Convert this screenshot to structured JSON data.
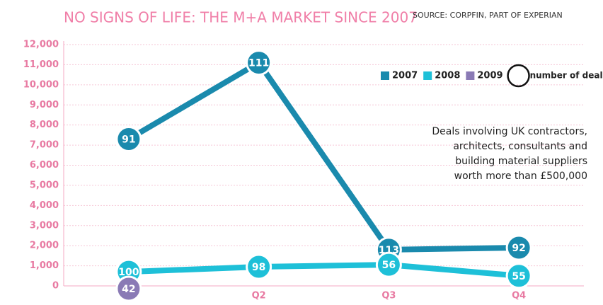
{
  "chart_data": {
    "type": "line",
    "title": "NO SIGNS OF LIFE: THE M+A MARKET SINCE 2007",
    "source": "SOURCE: CORPFIN, PART OF EXPERIAN",
    "annotation": [
      "Deals involving UK contractors,",
      "architects, consultants and",
      "building material suppliers",
      "worth more than £500,000"
    ],
    "size_legend": "number of deals",
    "categories": [
      null,
      "Q2",
      "Q3",
      "Q4"
    ],
    "series": [
      {
        "name": "2007",
        "color": "#1a8aad",
        "values": [
          7300,
          11100,
          1800,
          1900
        ],
        "deals": [
          91,
          111,
          113,
          92
        ]
      },
      {
        "name": "2008",
        "color": "#1ec0d8",
        "values": [
          700,
          950,
          1050,
          500
        ],
        "deals": [
          100,
          98,
          56,
          55
        ]
      },
      {
        "name": "2009",
        "color": "#8a7ab5",
        "values": [
          0,
          null,
          null,
          null
        ],
        "deals": [
          42,
          null,
          null,
          null
        ]
      }
    ],
    "ylim": [
      0,
      12000
    ],
    "yticks": [
      0,
      {
        "value": 1000,
        "label": "1,000"
      },
      {
        "value": 2000,
        "label": "2,000"
      },
      {
        "value": 3000,
        "label": "3,000"
      },
      {
        "value": 4000,
        "label": "4,000"
      },
      {
        "value": 5000,
        "label": "5,000"
      },
      {
        "value": 6000,
        "label": "6,000"
      },
      {
        "value": 7000,
        "label": "7,000"
      },
      {
        "value": 8000,
        "label": "8,000"
      },
      {
        "value": 9000,
        "label": "9,000"
      },
      {
        "value": 10000,
        "label": "10,000"
      },
      {
        "value": 11000,
        "label": "11,000"
      },
      {
        "value": 12000,
        "label": "12,000"
      }
    ],
    "grid": true
  }
}
